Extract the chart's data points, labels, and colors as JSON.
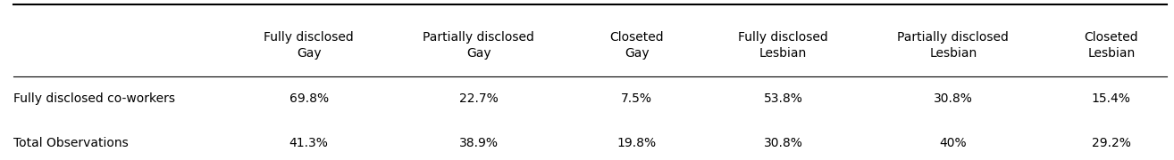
{
  "col_headers": [
    "Fully disclosed\nGay",
    "Partially disclosed\nGay",
    "Closeted\nGay",
    "Fully disclosed\nLesbian",
    "Partially disclosed\nLesbian",
    "Closeted\nLesbian"
  ],
  "row_labels": [
    "Fully disclosed co-workers",
    "Total Observations"
  ],
  "values": [
    [
      "69.8%",
      "22.7%",
      "7.5%",
      "53.8%",
      "30.8%",
      "15.4%"
    ],
    [
      "41.3%",
      "38.9%",
      "19.8%",
      "30.8%",
      "40%",
      "29.2%"
    ]
  ],
  "background_color": "#ffffff",
  "text_color": "#000000",
  "font_size": 10,
  "header_font_size": 10
}
